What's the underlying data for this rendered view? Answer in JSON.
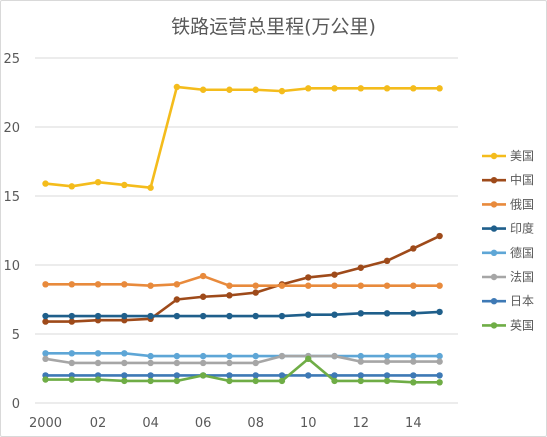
{
  "chart_data": {
    "type": "line",
    "title": "铁路运营总里程(万公里)",
    "xlabel": "",
    "ylabel": "",
    "x": [
      2000,
      2001,
      2002,
      2003,
      2004,
      2005,
      2006,
      2007,
      2008,
      2009,
      2010,
      2011,
      2012,
      2013,
      2014,
      2015
    ],
    "x_tick_labels": [
      {
        "x": 2000,
        "label": "2000"
      },
      {
        "x": 2002,
        "label": "02"
      },
      {
        "x": 2004,
        "label": "04"
      },
      {
        "x": 2006,
        "label": "06"
      },
      {
        "x": 2008,
        "label": "08"
      },
      {
        "x": 2010,
        "label": "10"
      },
      {
        "x": 2012,
        "label": "12"
      },
      {
        "x": 2014,
        "label": "14"
      }
    ],
    "y_ticks": [
      "0",
      "5",
      "10",
      "15",
      "20",
      "25"
    ],
    "ylim": [
      0,
      25
    ],
    "xlim": [
      1999.6,
      2015.7
    ],
    "grid": "horizontal",
    "legend_position": "right",
    "series": [
      {
        "name": "美国",
        "color": "#F4BC1C",
        "values": [
          15.9,
          15.7,
          16.0,
          15.8,
          15.6,
          22.9,
          22.7,
          22.7,
          22.7,
          22.6,
          22.8,
          22.8,
          22.8,
          22.8,
          22.8,
          22.8
        ]
      },
      {
        "name": "中国",
        "color": "#9E4A1A",
        "values": [
          5.9,
          5.9,
          6.0,
          6.0,
          6.1,
          7.5,
          7.7,
          7.8,
          8.0,
          8.6,
          9.1,
          9.3,
          9.8,
          10.3,
          11.2,
          12.1
        ]
      },
      {
        "name": "俄国",
        "color": "#E88A3C",
        "values": [
          8.6,
          8.6,
          8.6,
          8.6,
          8.5,
          8.6,
          9.2,
          8.5,
          8.5,
          8.5,
          8.5,
          8.5,
          8.5,
          8.5,
          8.5,
          8.5
        ]
      },
      {
        "name": "印度",
        "color": "#1F5F8B",
        "values": [
          6.3,
          6.3,
          6.3,
          6.3,
          6.3,
          6.3,
          6.3,
          6.3,
          6.3,
          6.3,
          6.4,
          6.4,
          6.5,
          6.5,
          6.5,
          6.6
        ]
      },
      {
        "name": "德国",
        "color": "#5EA6D6",
        "values": [
          3.6,
          3.6,
          3.6,
          3.6,
          3.4,
          3.4,
          3.4,
          3.4,
          3.4,
          3.4,
          3.4,
          3.4,
          3.4,
          3.4,
          3.4,
          3.4
        ]
      },
      {
        "name": "法国",
        "color": "#A6A6A6",
        "values": [
          3.2,
          2.9,
          2.9,
          2.9,
          2.9,
          2.9,
          2.9,
          2.9,
          2.9,
          3.4,
          3.4,
          3.4,
          3.0,
          3.0,
          3.0,
          3.0
        ]
      },
      {
        "name": "日本",
        "color": "#3E79B5",
        "values": [
          2.0,
          2.0,
          2.0,
          2.0,
          2.0,
          2.0,
          2.0,
          2.0,
          2.0,
          2.0,
          2.0,
          2.0,
          2.0,
          2.0,
          2.0,
          2.0
        ]
      },
      {
        "name": "英国",
        "color": "#6FAD46",
        "values": [
          1.7,
          1.7,
          1.7,
          1.6,
          1.6,
          1.6,
          2.0,
          1.6,
          1.6,
          1.6,
          3.2,
          1.6,
          1.6,
          1.6,
          1.5,
          1.5
        ]
      }
    ]
  }
}
